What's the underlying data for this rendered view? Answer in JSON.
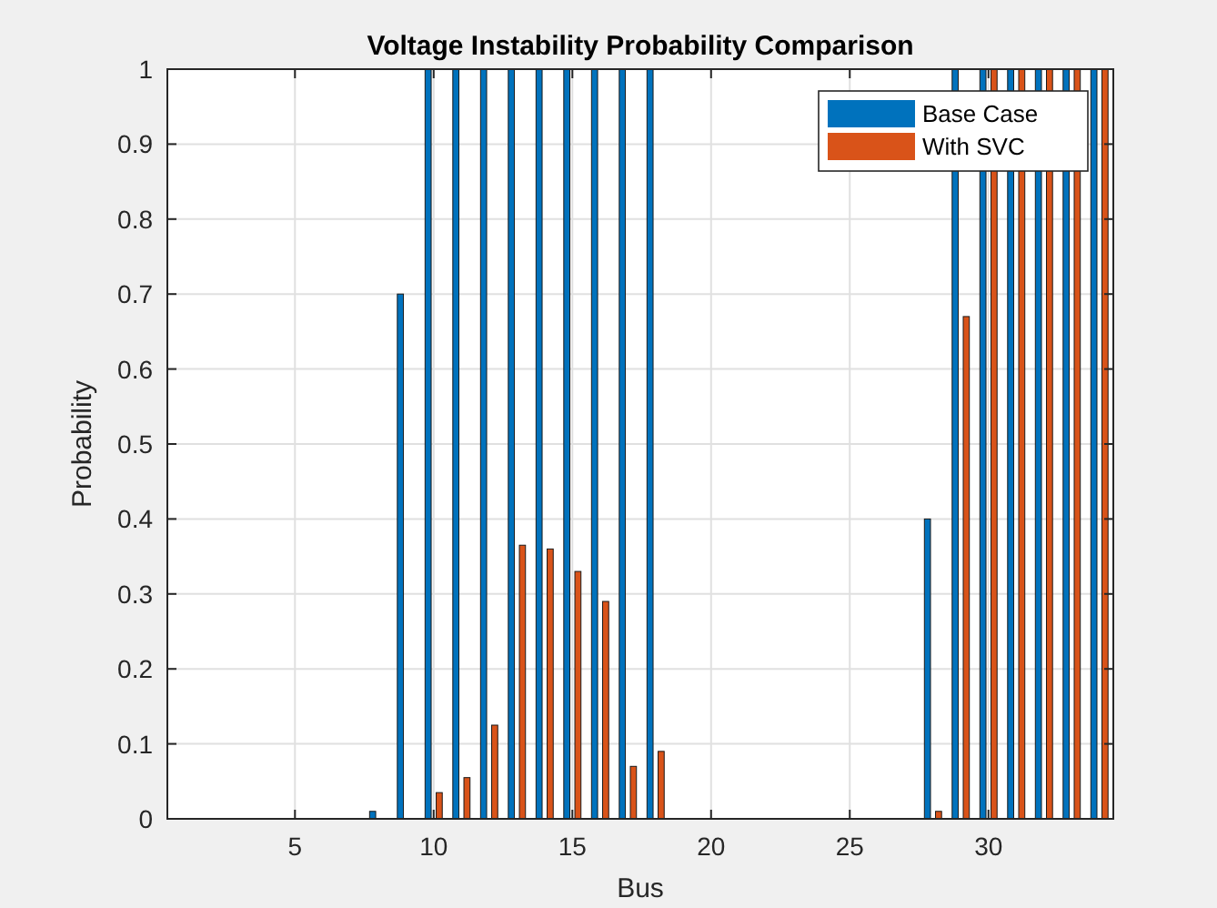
{
  "chart_data": {
    "type": "bar",
    "title": "Voltage Instability Probability Comparison",
    "xlabel": "Bus",
    "ylabel": "Probability",
    "x": [
      1,
      2,
      3,
      4,
      5,
      6,
      7,
      8,
      9,
      10,
      11,
      12,
      13,
      14,
      15,
      16,
      17,
      18,
      19,
      20,
      21,
      22,
      23,
      24,
      25,
      26,
      27,
      28,
      29,
      30,
      31,
      32,
      33,
      34
    ],
    "series": [
      {
        "name": "Base Case",
        "color": "#0072bd",
        "values": [
          0,
          0,
          0,
          0,
          0,
          0,
          0,
          0.01,
          0.7,
          1,
          1,
          1,
          1,
          1,
          1,
          1,
          1,
          1,
          0,
          0,
          0,
          0,
          0,
          0,
          0,
          0,
          0,
          0.4,
          1,
          1,
          1,
          1,
          1,
          1
        ]
      },
      {
        "name": "With SVC",
        "color": "#d95319",
        "values": [
          0,
          0,
          0,
          0,
          0,
          0,
          0,
          0,
          0,
          0.035,
          0.055,
          0.125,
          0.365,
          0.36,
          0.33,
          0.29,
          0.07,
          0.09,
          0,
          0,
          0,
          0,
          0,
          0,
          0,
          0,
          0,
          0.01,
          0.67,
          1,
          1,
          1,
          1,
          1
        ]
      }
    ],
    "xlim": [
      0.4,
      34.5
    ],
    "xticks": [
      5,
      10,
      15,
      20,
      25,
      30
    ],
    "ylim": [
      0,
      1
    ],
    "yticks": [
      0,
      0.1,
      0.2,
      0.3,
      0.4,
      0.5,
      0.6,
      0.7,
      0.8,
      0.9,
      1
    ],
    "grid": true,
    "legend": "top right"
  }
}
